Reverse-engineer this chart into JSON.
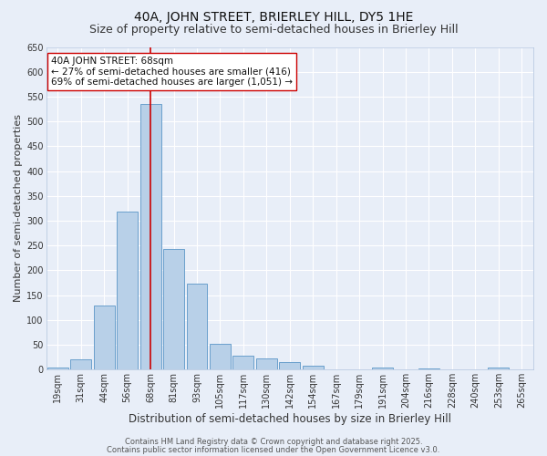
{
  "title": "40A, JOHN STREET, BRIERLEY HILL, DY5 1HE",
  "subtitle": "Size of property relative to semi-detached houses in Brierley Hill",
  "xlabel": "Distribution of semi-detached houses by size in Brierley Hill",
  "ylabel": "Number of semi-detached properties",
  "categories": [
    "19sqm",
    "31sqm",
    "44sqm",
    "56sqm",
    "68sqm",
    "81sqm",
    "93sqm",
    "105sqm",
    "117sqm",
    "130sqm",
    "142sqm",
    "154sqm",
    "167sqm",
    "179sqm",
    "191sqm",
    "204sqm",
    "216sqm",
    "228sqm",
    "240sqm",
    "253sqm",
    "265sqm"
  ],
  "values": [
    5,
    20,
    130,
    318,
    535,
    243,
    173,
    52,
    28,
    22,
    15,
    7,
    0,
    0,
    4,
    0,
    3,
    0,
    0,
    4,
    0
  ],
  "bar_color": "#b8d0e8",
  "bar_edge_color": "#6aa0cc",
  "background_color": "#e8eef8",
  "grid_color": "#ffffff",
  "vline_color": "#cc0000",
  "annotation_text": "40A JOHN STREET: 68sqm\n← 27% of semi-detached houses are smaller (416)\n69% of semi-detached houses are larger (1,051) →",
  "annotation_box_color": "#ffffff",
  "annotation_box_edge": "#cc0000",
  "ylim": [
    0,
    650
  ],
  "yticks": [
    0,
    50,
    100,
    150,
    200,
    250,
    300,
    350,
    400,
    450,
    500,
    550,
    600,
    650
  ],
  "footer1": "Contains HM Land Registry data © Crown copyright and database right 2025.",
  "footer2": "Contains public sector information licensed under the Open Government Licence v3.0.",
  "title_fontsize": 10,
  "subtitle_fontsize": 9,
  "xlabel_fontsize": 8.5,
  "ylabel_fontsize": 8,
  "tick_fontsize": 7,
  "annotation_fontsize": 7.5,
  "footer_fontsize": 6
}
